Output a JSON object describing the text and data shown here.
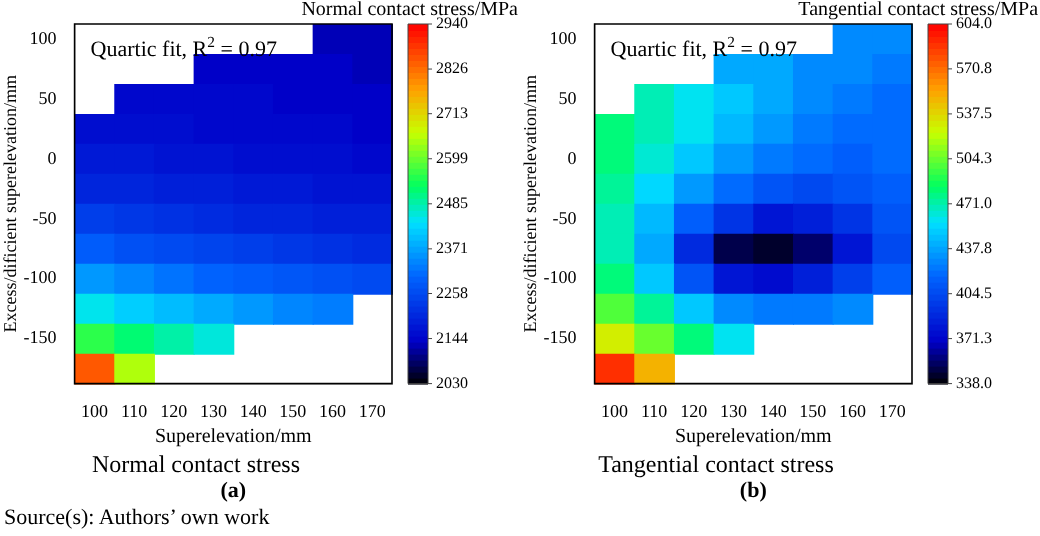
{
  "chart_data": [
    {
      "type": "heatmap",
      "xlabel": "Superelevation/mm",
      "ylabel": "Excess/dificient superelevation/mm",
      "clabel": "Normal contact stress/MPa",
      "title": "Normal contact stress",
      "annotations": [
        "Quartic fit, R$^{2}$ = 0.97",
        "(a)",
        "Source(s): Authors’ own work"
      ],
      "categories": [
        "100",
        "110",
        "120",
        "130",
        "140",
        "150",
        "160",
        "170"
      ],
      "y_categories": [
        "100",
        null,
        "50",
        null,
        "0",
        null,
        "-50",
        null,
        "-100",
        null,
        "-150",
        null
      ],
      "cells": [
        [
          null,
          null,
          null,
          null,
          null,
          null,
          2130,
          2130
        ],
        [
          null,
          null,
          null,
          2140,
          2140,
          2140,
          2140,
          2130
        ],
        [
          null,
          2150,
          2150,
          2150,
          2150,
          2140,
          2140,
          2140
        ],
        [
          2160,
          2160,
          2160,
          2150,
          2150,
          2150,
          2150,
          2140
        ],
        [
          2180,
          2180,
          2170,
          2170,
          2160,
          2160,
          2160,
          2150
        ],
        [
          2200,
          2200,
          2190,
          2190,
          2180,
          2180,
          2170,
          2170
        ],
        [
          2240,
          2230,
          2220,
          2210,
          2200,
          2200,
          2190,
          2190
        ],
        [
          2290,
          2270,
          2260,
          2250,
          2240,
          2230,
          2220,
          2210
        ],
        [
          2360,
          2340,
          2320,
          2300,
          2290,
          2280,
          2270,
          2260
        ],
        [
          2450,
          2420,
          2400,
          2380,
          2360,
          2340,
          2330,
          null
        ],
        [
          2560,
          2520,
          2490,
          2460,
          null,
          null,
          null,
          null
        ],
        [
          2850,
          2650,
          null,
          null,
          null,
          null,
          null,
          null
        ]
      ],
      "clim": [
        2030,
        2940
      ],
      "cticks": [
        2030,
        2144,
        2258,
        2371,
        2485,
        2599,
        2713,
        2826,
        2940
      ]
    },
    {
      "type": "heatmap",
      "xlabel": "Superelevation/mm",
      "ylabel": "Excess/dificient superelevation/mm",
      "clabel": "Tangential contact stress/MPa",
      "title": "Tangential contact stress",
      "annotations": [
        "Quartic fit, R$^{2}$ = 0.97",
        "(b)"
      ],
      "categories": [
        "100",
        "110",
        "120",
        "130",
        "140",
        "150",
        "160",
        "170"
      ],
      "y_categories": [
        "100",
        null,
        "50",
        null,
        "0",
        null,
        "-50",
        null,
        "-100",
        null,
        "-150",
        null
      ],
      "cells": [
        [
          null,
          null,
          null,
          null,
          null,
          null,
          430,
          430
        ],
        [
          null,
          null,
          null,
          440,
          440,
          430,
          430,
          425
        ],
        [
          null,
          470,
          460,
          450,
          440,
          430,
          425,
          420
        ],
        [
          480,
          470,
          460,
          445,
          435,
          425,
          420,
          420
        ],
        [
          480,
          465,
          450,
          435,
          425,
          420,
          415,
          420
        ],
        [
          475,
          455,
          435,
          420,
          410,
          405,
          410,
          415
        ],
        [
          470,
          445,
          415,
          395,
          380,
          385,
          395,
          410
        ],
        [
          470,
          440,
          390,
          350,
          345,
          355,
          380,
          405
        ],
        [
          480,
          450,
          410,
          380,
          375,
          385,
          400,
          415
        ],
        [
          500,
          475,
          450,
          430,
          425,
          425,
          430,
          null
        ],
        [
          530,
          505,
          480,
          460,
          null,
          null,
          null,
          null
        ],
        [
          590,
          550,
          null,
          null,
          null,
          null,
          null,
          null
        ]
      ],
      "clim": [
        338,
        604
      ],
      "cticks": [
        {
          "value": 338,
          "label": "338.0"
        },
        {
          "value": 371.3,
          "label": "371.3"
        },
        {
          "value": 404.5,
          "label": "404.5"
        },
        {
          "value": 437.8,
          "label": "437.8"
        },
        {
          "value": 471,
          "label": "471.0"
        },
        {
          "value": 504.3,
          "label": "504.3"
        },
        {
          "value": 537.5,
          "label": "537.5"
        },
        {
          "value": 570.8,
          "label": "570.8"
        },
        {
          "value": 604,
          "label": "604.0"
        }
      ]
    }
  ]
}
